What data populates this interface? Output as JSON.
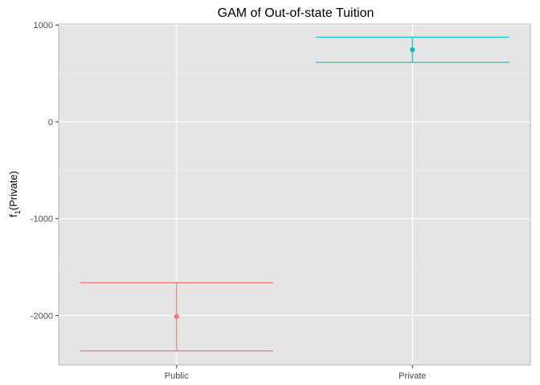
{
  "chart_data": {
    "type": "errorbar",
    "title": "GAM of Out-of-state Tuition",
    "xlabel": "",
    "ylabel": "f",
    "ylabel_sub": "1",
    "ylabel_rest": "(Private)",
    "categories": [
      "Public",
      "Private"
    ],
    "series": [
      {
        "category": "Public",
        "estimate": -2010,
        "lower": -2365,
        "upper": -1660,
        "color": "#F8766D"
      },
      {
        "category": "Private",
        "estimate": 745,
        "lower": 615,
        "upper": 875,
        "color": "#00BFC4"
      }
    ],
    "y_ticks": [
      1000,
      0,
      -1000,
      -2000
    ],
    "y_tick_labels": [
      "1000",
      "0",
      "-1000",
      "-2000"
    ],
    "ylim": [
      -2510,
      1010
    ],
    "grid": true,
    "panel_background": "#E5E5E5",
    "grid_color": "#FFFFFF",
    "legend": "none"
  }
}
